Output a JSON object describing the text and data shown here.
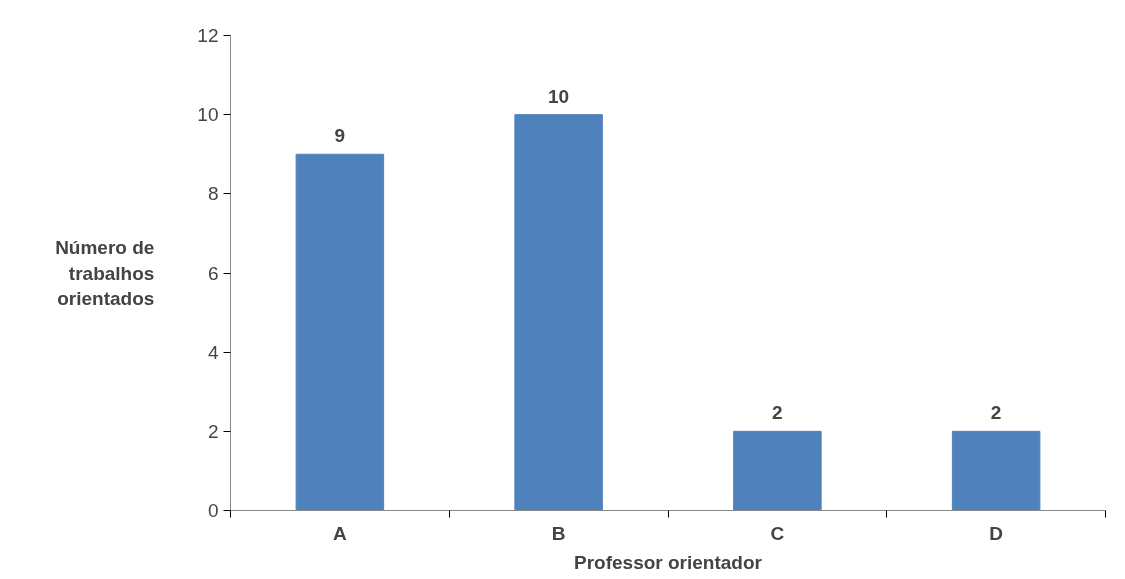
{
  "chart_data": {
    "type": "bar",
    "xlabel": "Professor orientador",
    "ylabel": "Número de trabalhos orientados",
    "categories": [
      "A",
      "B",
      "C",
      "D"
    ],
    "series": [
      {
        "color": "#4f81bd",
        "values": [
          9,
          10,
          2,
          2
        ]
      }
    ],
    "ylim": [
      0,
      12
    ],
    "yticks": [
      0,
      2,
      4,
      6,
      8,
      10,
      12
    ],
    "data_labels": true,
    "grid": false
  }
}
